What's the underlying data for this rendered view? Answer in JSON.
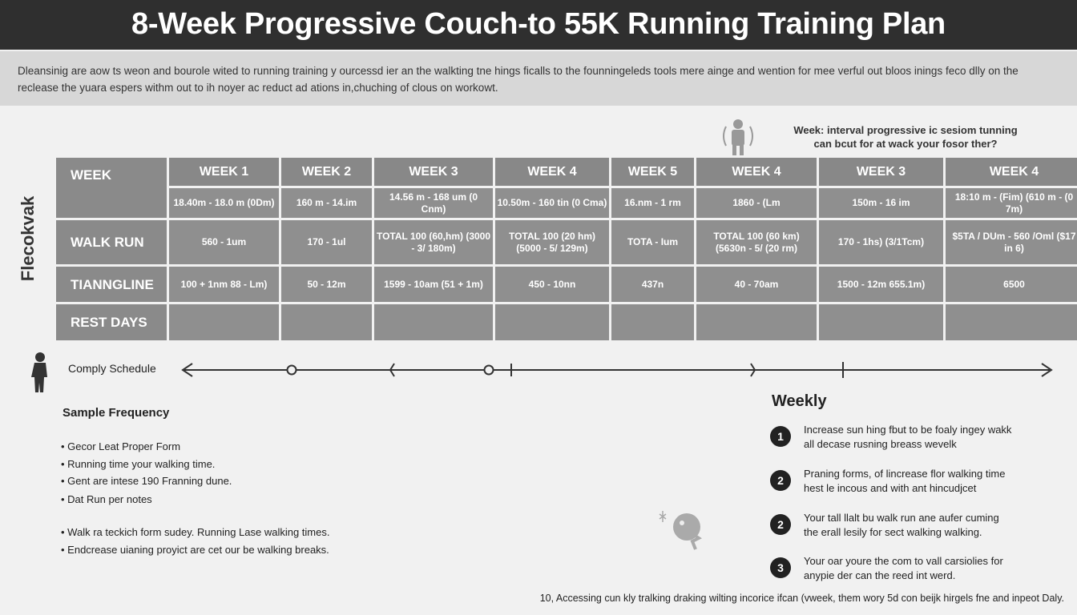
{
  "title": "8-Week Progressive Couch-to 55K Running Training Plan",
  "intro": "Dleansinig are aow ts weon and bourole wited to running training y ourcessd ier an the walkting tne hings ficalls to the founningeleds tools mere ainge and wention for mee verful out bloos inings feco dlly on the reclease the yuara espers withm out to ih noyer ac reduct ad ations in,chuching of clous on workowt.",
  "side_label": "Flecokvak",
  "note": {
    "line1": "Week: interval progressive ic sesiom tunning",
    "line2": "can bcut for at wack your fosor ther?"
  },
  "table": {
    "row_labels": [
      "WEEK",
      "WALK RUN",
      "TIANNGLINE",
      "REST DAYS"
    ],
    "columns": [
      {
        "week": "WEEK 1",
        "dist": "18.40m - 18.0 m (0Dm)",
        "walkrun": "560 - 1um",
        "training": "100 + 1nm 88 - Lm)",
        "rest": ""
      },
      {
        "week": "WEEK 2",
        "dist": "160 m - 14.im",
        "walkrun": "170 - 1ul",
        "training": "50 - 12m",
        "rest": ""
      },
      {
        "week": "WEEK 3",
        "dist": "14.56 m - 168 um (0 Cnm)",
        "walkrun": "TOTAL 100 (60,hm) (3000 - 3/ 180m)",
        "training": "1599 - 10am (51 + 1m)",
        "rest": ""
      },
      {
        "week": "WEEK 4",
        "dist": "10.50m - 160 tin (0 Cma)",
        "walkrun": "TOTAL 100 (20 hm) (5000 - 5/ 129m)",
        "training": "450 - 10nn",
        "rest": ""
      },
      {
        "week": "WEEK 5",
        "dist": "16.nm - 1 rm",
        "walkrun": "TOTA - Ium",
        "training": "437n",
        "rest": ""
      },
      {
        "week": "WEEK 4",
        "dist": "1860 - (Lm",
        "walkrun": "TOTAL 100 (60 km) (5630n - 5/ (20 rm)",
        "training": "40 - 70am",
        "rest": ""
      },
      {
        "week": "WEEK 3",
        "dist": "150m - 16 im",
        "walkrun": "170 - 1hs) (3/1Tcm)",
        "training": "1500 - 12m 655.1m)",
        "rest": ""
      },
      {
        "week": "WEEK 4",
        "dist": "18:10 m - (Fim) (610 m - (0 7m)",
        "walkrun": "$5TA / DUm - 560 /Oml ($17 in 6)",
        "training": "6500",
        "rest": ""
      }
    ]
  },
  "timeline": {
    "label": "Comply Schedule"
  },
  "sample": {
    "heading": "Sample Frequency",
    "bullets": [
      "Gecor Leat Proper Form",
      "Running time your walking time.",
      "Gent are intese 190 Franning dune.",
      "Dat Run per notes",
      "Walk ra teckich form sudey. Running Lase walking times.",
      "Endcrease uianing proyict are cet our be walking breaks."
    ]
  },
  "weekly": {
    "heading": "Weekly",
    "items": [
      {
        "num": "1",
        "l1": "Increase sun hing fbut to be foaly ingey wakk",
        "l2": "all decase rusning breass wevelk"
      },
      {
        "num": "2",
        "l1": "Praning forms, of lincrease flor walking time",
        "l2": "hest le incous and with ant hincudjcet"
      },
      {
        "num": "2",
        "l1": "Your tall llalt bu walk run ane aufer cuming",
        "l2": "the erall lesily for sect walking walking."
      },
      {
        "num": "3",
        "l1": "Your oar youre the com to vall carsiolies for",
        "l2": "anypie der can the reed int werd."
      }
    ]
  },
  "footer": "10, Accessing cun kly tralking draking wilting incorice ifcan (vweek, them wory 5d con beijk hirgels fne and inpeot Daly."
}
